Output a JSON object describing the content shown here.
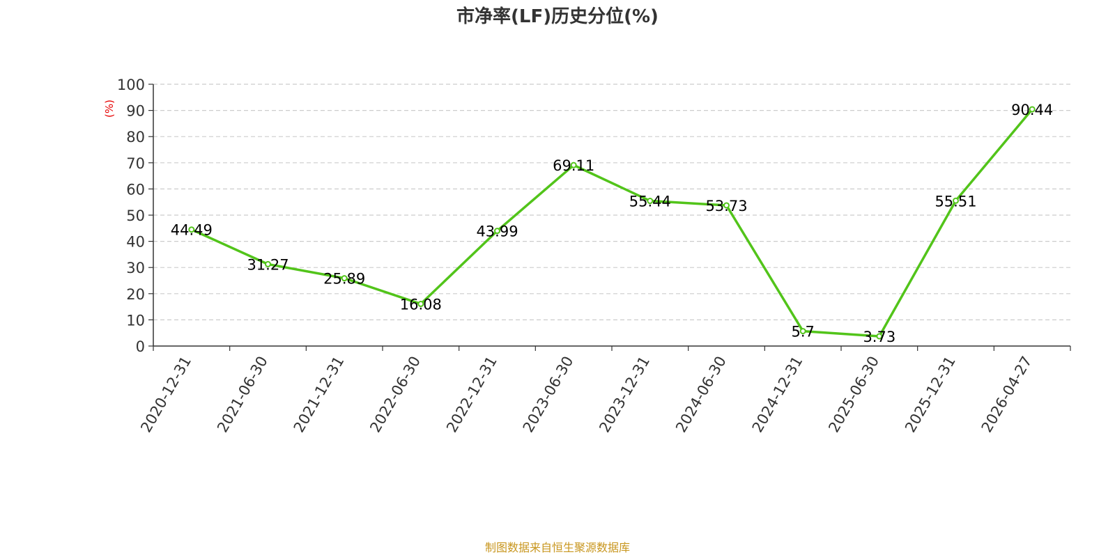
{
  "chart_data": {
    "type": "line",
    "title": "市净率(LF)历史分位(%)",
    "ylabel": "(%)",
    "xlabel": "",
    "categories": [
      "2020-12-31",
      "2021-06-30",
      "2021-12-31",
      "2022-06-30",
      "2022-12-31",
      "2023-06-30",
      "2023-12-31",
      "2024-06-30",
      "2024-12-31",
      "2025-06-30",
      "2025-12-31",
      "2026-04-27"
    ],
    "series": [
      {
        "values": [
          44.49,
          31.27,
          25.89,
          16.08,
          43.99,
          69.11,
          55.44,
          53.73,
          5.7,
          3.73,
          55.51,
          90.44
        ]
      }
    ],
    "data_labels": [
      "44.49",
      "31.27",
      "25.89",
      "16.08",
      "43.99",
      "69.11",
      "55.44",
      "53.73",
      "5.7",
      "3.73",
      "55.51",
      "90.44"
    ],
    "ylim": [
      0,
      100
    ],
    "yticks": [
      0,
      10,
      20,
      30,
      40,
      50,
      60,
      70,
      80,
      90,
      100
    ],
    "grid": true,
    "legend": "none",
    "line_color": "#52c41a",
    "ylabel_color": "#e60000",
    "source_color": "#c8961e"
  },
  "footer": {
    "source": "制图数据来自恒生聚源数据库"
  }
}
